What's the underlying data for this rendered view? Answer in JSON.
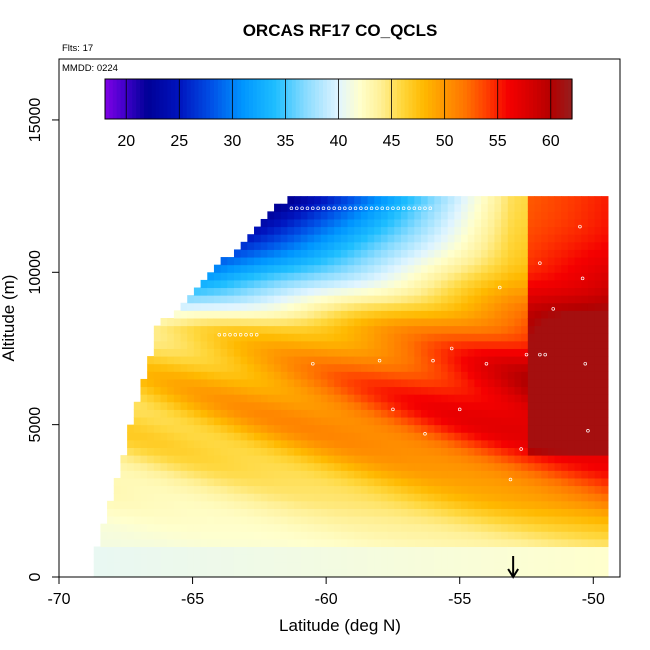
{
  "chart_data": {
    "type": "heatmap",
    "title": "ORCAS RF17 CO_QCLS",
    "flights_label": "Flts: 17",
    "mmdd_label": "MMDD: 0224",
    "xlabel": "Latitude (deg N)",
    "ylabel": "Altitude (m)",
    "xlim": [
      -70,
      -49
    ],
    "ylim": [
      0,
      17000
    ],
    "xticks": [
      -70,
      -65,
      -60,
      -55,
      -50
    ],
    "yticks": [
      0,
      5000,
      10000,
      15000
    ],
    "colorbar": {
      "min": 18,
      "max": 62,
      "ticks": [
        20,
        25,
        30,
        35,
        40,
        45,
        50,
        55,
        60
      ],
      "position": "top-center"
    },
    "marker_arrow": {
      "x": -53,
      "direction": "down"
    },
    "data_extent": {
      "lat_min": -68.7,
      "lat_max": -49.4,
      "alt_max": 12300
    },
    "field": [
      {
        "lat": -68.5,
        "alt": 200,
        "value": 41
      },
      {
        "lat": -65,
        "alt": 2000,
        "value": 41.5
      },
      {
        "lat": -62,
        "alt": 7500,
        "value": 46
      },
      {
        "lat": -58,
        "alt": 11500,
        "value": 27
      },
      {
        "lat": -56,
        "alt": 11000,
        "value": 33
      },
      {
        "lat": -55,
        "alt": 9000,
        "value": 49
      },
      {
        "lat": -53,
        "alt": 6000,
        "value": 51
      },
      {
        "lat": -51,
        "alt": 8000,
        "value": 56
      },
      {
        "lat": -50,
        "alt": 5000,
        "value": 57
      },
      {
        "lat": -51,
        "alt": 2000,
        "value": 47
      }
    ]
  }
}
